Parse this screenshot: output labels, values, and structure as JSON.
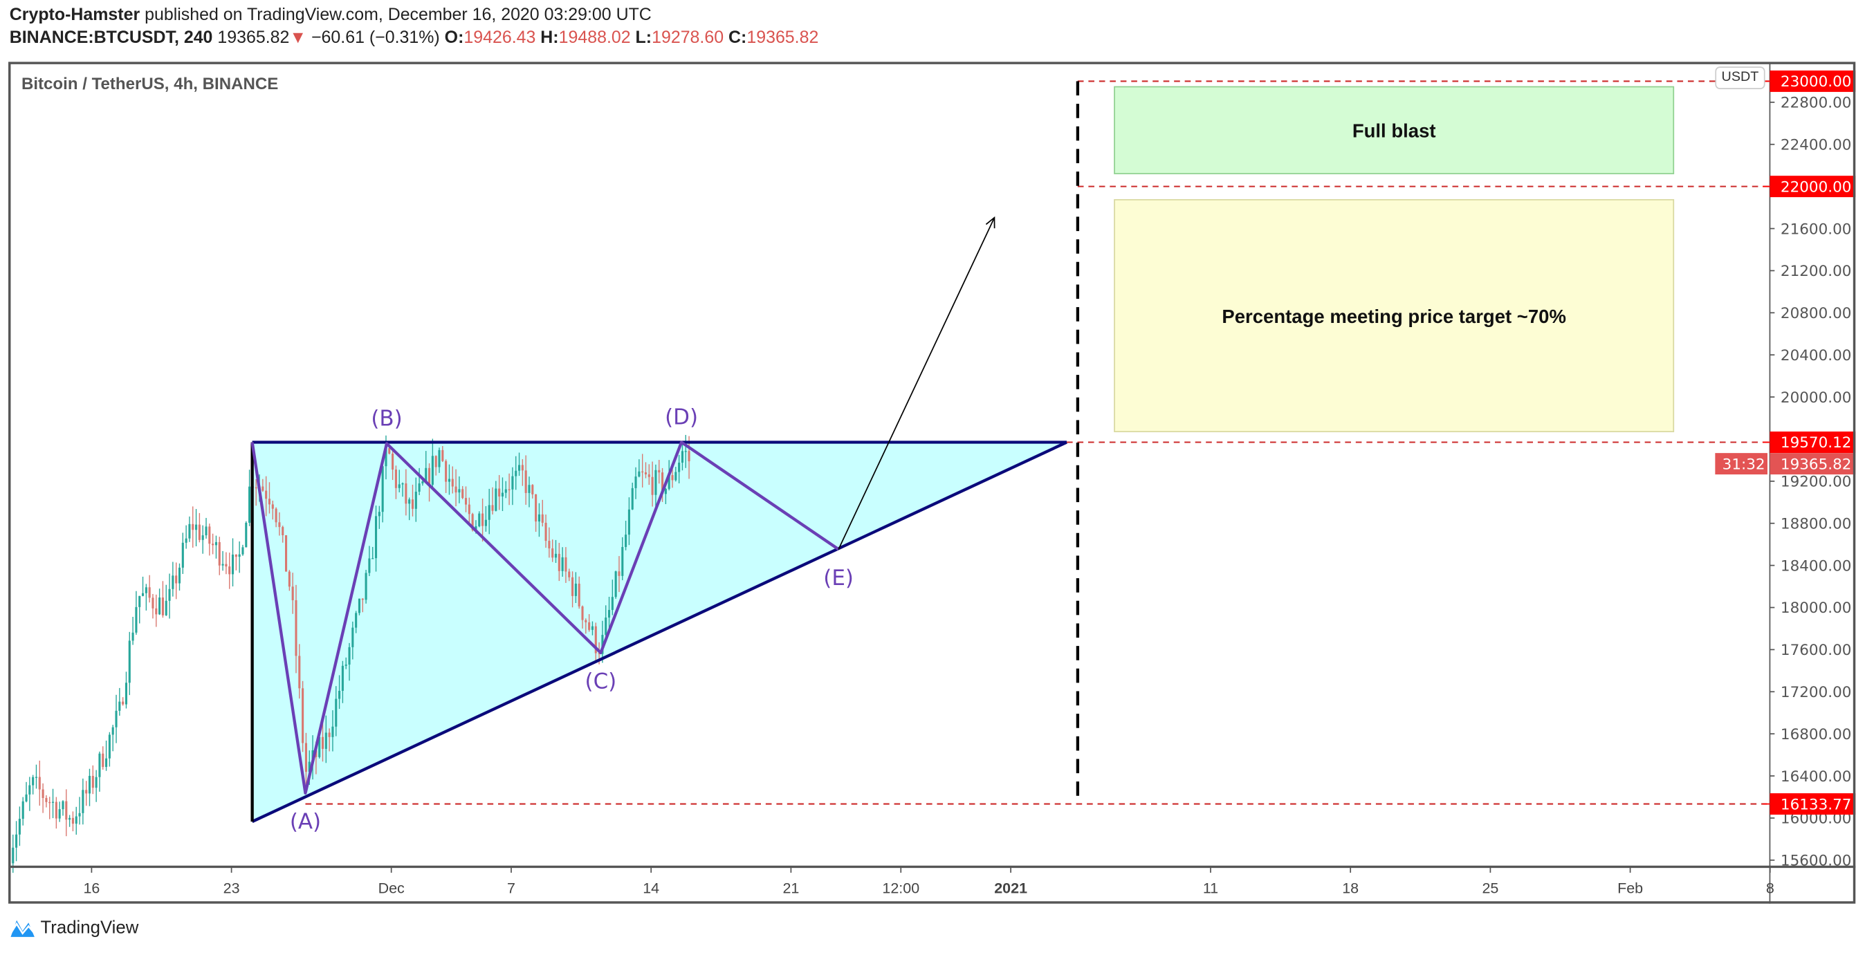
{
  "header": {
    "author": "Crypto-Hamster",
    "published": "published on TradingView.com, December 16, 2020 03:29:00 UTC",
    "symbol": "BINANCE:BTCUSDT, 240",
    "last": "19365.82",
    "change": "−60.61 (−0.31%)",
    "o_label": "O:",
    "o": "19426.43",
    "h_label": "H:",
    "h": "19488.02",
    "l_label": "L:",
    "l": "19278.60",
    "c_label": "C:",
    "c": "19365.82"
  },
  "chart_title": "Bitcoin / TetherUS, 4h, BINANCE",
  "currency": "USDT",
  "brand": "TradingView",
  "colors": {
    "up": "#26a69a",
    "down": "#d9776f",
    "badge": "#ff0000",
    "last_badge": "#e35454",
    "zigzag": "#6a3fb5",
    "triangle_fill": "#c9ffff",
    "trend": "#0a0a7a"
  },
  "chart_data": {
    "type": "candlestick",
    "timeframe": "4h",
    "x_unit": "days since Nov 16 2020",
    "price_path": [
      [
        -4.1,
        15700
      ],
      [
        -3,
        16320
      ],
      [
        -1,
        15980
      ],
      [
        0,
        16320
      ],
      [
        1.4,
        17000
      ],
      [
        2.3,
        18120
      ],
      [
        3.8,
        18010
      ],
      [
        5,
        18800
      ],
      [
        6.1,
        18580
      ],
      [
        7.3,
        18350
      ],
      [
        8,
        19250
      ],
      [
        9.1,
        19030
      ],
      [
        10,
        18120
      ],
      [
        10.7,
        16430
      ],
      [
        11.8,
        16770
      ],
      [
        12.7,
        17450
      ],
      [
        13.9,
        18350
      ],
      [
        14.8,
        19530
      ],
      [
        15.1,
        19250
      ],
      [
        16,
        18910
      ],
      [
        17.4,
        19480
      ],
      [
        18.3,
        19030
      ],
      [
        19.2,
        18800
      ],
      [
        20.4,
        19140
      ],
      [
        21.6,
        19250
      ],
      [
        22.8,
        18580
      ],
      [
        24,
        18240
      ],
      [
        25.2,
        17670
      ],
      [
        25.5,
        17620
      ],
      [
        26.4,
        18350
      ],
      [
        27.3,
        19250
      ],
      [
        28.8,
        19140
      ],
      [
        29.6,
        19500
      ],
      [
        30.0,
        19365
      ]
    ],
    "y_ticks": [
      "22800.00",
      "22400.00",
      "21600.00",
      "21200.00",
      "20800.00",
      "20400.00",
      "20000.00",
      "19200.00",
      "18800.00",
      "18400.00",
      "18000.00",
      "17600.00",
      "17200.00",
      "16800.00",
      "16400.00",
      "16000.00",
      "15600.00"
    ],
    "x_ticks": [
      {
        "d": 0,
        "label": "16"
      },
      {
        "d": 7,
        "label": "23"
      },
      {
        "d": 15,
        "label": "Dec"
      },
      {
        "d": 21,
        "label": "7"
      },
      {
        "d": 28,
        "label": "14"
      },
      {
        "d": 35,
        "label": "21"
      },
      {
        "d": 40.5,
        "label": "12:00"
      },
      {
        "d": 46,
        "label": "2021"
      },
      {
        "d": 56,
        "label": "11"
      },
      {
        "d": 63,
        "label": "18"
      },
      {
        "d": 70,
        "label": "25"
      },
      {
        "d": 77,
        "label": "Feb"
      },
      {
        "d": 84,
        "label": "8"
      }
    ],
    "price_badges": [
      {
        "value": 23000,
        "label": "23000.00",
        "kind": "level"
      },
      {
        "value": 22000,
        "label": "22000.00",
        "kind": "level"
      },
      {
        "value": 19570.12,
        "label": "19570.12",
        "kind": "level"
      },
      {
        "value": 19365.82,
        "label": "19365.82",
        "kind": "last"
      },
      {
        "value": 19200,
        "label": "31:32",
        "kind": "countdown"
      },
      {
        "value": 16133.77,
        "label": "16133.77",
        "kind": "level"
      }
    ],
    "drawings": {
      "triangle": [
        [
          8.04,
          19570
        ],
        [
          48.8,
          19570
        ],
        [
          8.04,
          15966
        ]
      ],
      "zigzag": [
        [
          8.04,
          19570
        ],
        [
          10.7,
          16237
        ],
        [
          14.77,
          19558
        ],
        [
          25.48,
          17570
        ],
        [
          29.52,
          19570
        ],
        [
          37.38,
          18553
        ]
      ],
      "wave_labels": [
        {
          "label": "(A)",
          "d": 10.7,
          "p": 16237,
          "pos": "below"
        },
        {
          "label": "(B)",
          "d": 14.77,
          "p": 19558,
          "pos": "above"
        },
        {
          "label": "(C)",
          "d": 25.48,
          "p": 17570,
          "pos": "below"
        },
        {
          "label": "(D)",
          "d": 29.52,
          "p": 19570,
          "pos": "above"
        },
        {
          "label": "(E)",
          "d": 37.38,
          "p": 18553,
          "pos": "below"
        }
      ],
      "arrow": [
        [
          37.38,
          18553
        ],
        [
          45.18,
          21704
        ]
      ],
      "vertical_dashed": {
        "d": 49.35,
        "from": 16133.77,
        "to": 23000
      },
      "h_dashed": [
        {
          "p": 23000,
          "from": 49.35
        },
        {
          "p": 22000,
          "from": 49.35
        },
        {
          "p": 19570.12,
          "from": 48.8
        },
        {
          "p": 16133.77,
          "from": 10.7
        }
      ],
      "boxes": [
        {
          "label": "Full blast",
          "d1": 51.19,
          "d2": 79.17,
          "p1": 22947,
          "p2": 22122,
          "fill": "#d4fcd4",
          "stroke": "#8fd08f"
        },
        {
          "label": "Percentage meeting price target ~70%",
          "d1": 51.19,
          "d2": 79.17,
          "p1": 21874,
          "p2": 19671,
          "fill": "#fdfdd4",
          "stroke": "#d8d8a0"
        }
      ]
    }
  }
}
